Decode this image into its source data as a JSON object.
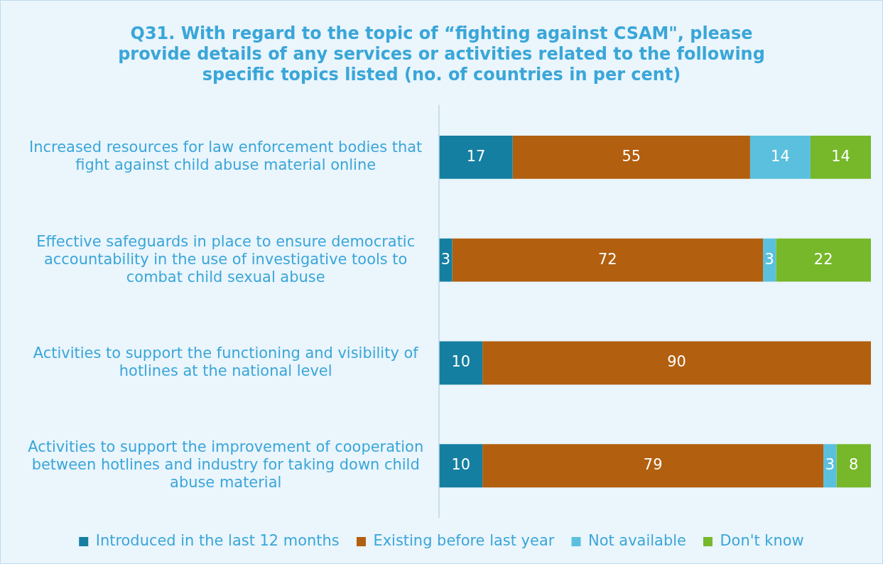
{
  "chart_data": {
    "type": "bar",
    "orientation": "horizontal",
    "stacked": true,
    "title": "Q31. With regard to the topic of “fighting against CSAM\", please provide details of any services or activities related to the following specific topics listed (no. of countries in per cent)",
    "categories": [
      "Increased resources for law enforcement bodies that fight against child abuse material online",
      "Effective safeguards in place to ensure democratic accountability in the use of investigative tools to combat child sexual abuse",
      "Activities to support the functioning and visibility of hotlines at the national level",
      "Activities to support the improvement of cooperation between hotlines and industry for taking down child abuse material"
    ],
    "series": [
      {
        "name": "Introduced in the last 12 months",
        "color": "#157fa1",
        "values": [
          17,
          3,
          10,
          10
        ]
      },
      {
        "name": "Existing before last year",
        "color": "#b25f0f",
        "values": [
          55,
          72,
          90,
          79
        ]
      },
      {
        "name": "Not available",
        "color": "#5bc0de",
        "values": [
          14,
          3,
          null,
          3
        ]
      },
      {
        "name": "Don't know",
        "color": "#76b82a",
        "values": [
          14,
          22,
          null,
          8
        ]
      }
    ],
    "xlim": [
      0,
      100
    ],
    "tick_labels": "y",
    "grid": false,
    "legend": "bottom",
    "data_labels": true
  }
}
